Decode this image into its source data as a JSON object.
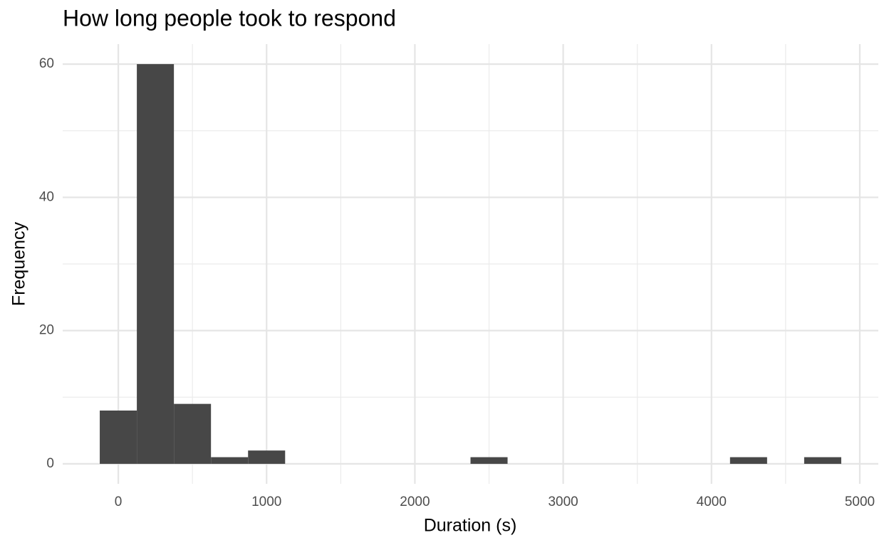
{
  "chart_data": {
    "type": "histogram",
    "title": "How long people took to respond",
    "x_label": "Duration (s)",
    "y_label": "Frequency",
    "bins": [
      -125,
      125,
      375,
      625,
      875,
      1125,
      1375,
      1625,
      1875,
      2125,
      2375,
      2625,
      2875,
      3125,
      3375,
      3625,
      3875,
      4125,
      4375,
      4625,
      4875
    ],
    "counts": [
      8,
      60,
      9,
      1,
      2,
      0,
      0,
      0,
      0,
      0,
      1,
      0,
      0,
      0,
      0,
      0,
      0,
      1,
      0,
      1
    ],
    "color": "#474747",
    "xlim": [
      -375,
      5125
    ],
    "xticks": [
      0,
      1000,
      2000,
      3000,
      4000,
      5000
    ],
    "x_minor_ticks": [
      500,
      1500,
      2500,
      3500,
      4500
    ],
    "ylim": [
      -3,
      63
    ],
    "yticks": [
      0,
      20,
      40,
      60
    ],
    "y_minor_ticks": [
      10,
      30,
      50
    ],
    "grid": true
  }
}
